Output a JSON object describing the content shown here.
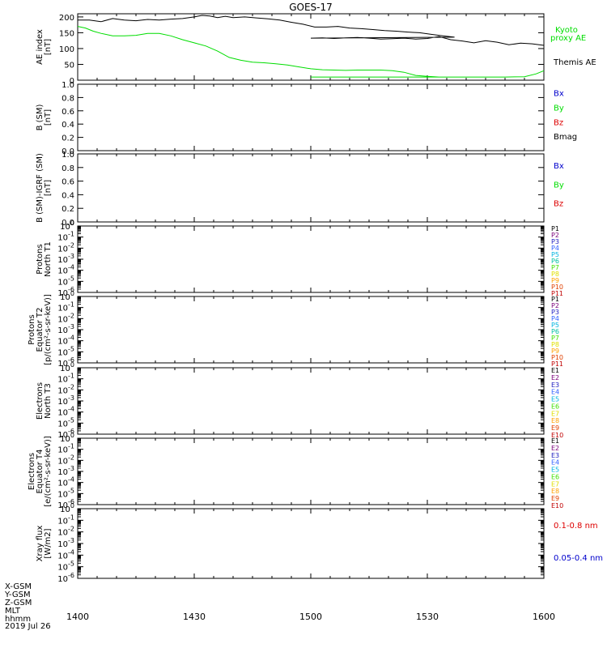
{
  "title": "GOES-17",
  "colors": {
    "axis": "#000000",
    "green": "#00dd00",
    "blue": "#0000cc",
    "red": "#dd0000"
  },
  "chart_data": [
    {
      "type": "line",
      "ylabel": [
        "AE index",
        "[nT]"
      ],
      "ylim": [
        0,
        210
      ],
      "yticks": [
        0,
        50,
        100,
        150,
        200
      ],
      "legend": [
        {
          "text": "Kyoto",
          "color": "#00dd00"
        },
        {
          "text": "proxy AE",
          "color": "#00dd00"
        },
        {
          "text": "Themis AE",
          "color": "#000000"
        }
      ],
      "series": [
        {
          "name": "Themis AE",
          "color": "#000000",
          "points": [
            [
              1400,
              190
            ],
            [
              1403,
              190
            ],
            [
              1406,
              185
            ],
            [
              1409,
              195
            ],
            [
              1412,
              190
            ],
            [
              1415,
              188
            ],
            [
              1418,
              192
            ],
            [
              1421,
              190
            ],
            [
              1424,
              193
            ],
            [
              1427,
              195
            ],
            [
              1430,
              200
            ],
            [
              1432,
              205
            ],
            [
              1434,
              203
            ],
            [
              1436,
              198
            ],
            [
              1438,
              202
            ],
            [
              1440,
              198
            ],
            [
              1443,
              200
            ],
            [
              1446,
              197
            ],
            [
              1449,
              194
            ],
            [
              1452,
              190
            ],
            [
              1455,
              183
            ],
            [
              1458,
              177
            ],
            [
              1461,
              168
            ],
            [
              1464,
              168
            ],
            [
              1467,
              170
            ],
            [
              1470,
              165
            ],
            [
              1473,
              163
            ],
            [
              1476,
              160
            ],
            [
              1479,
              157
            ],
            [
              1482,
              155
            ],
            [
              1485,
              152
            ],
            [
              1488,
              150
            ],
            [
              1491,
              145
            ],
            [
              1494,
              140
            ],
            [
              1497,
              136
            ],
            [
              1500,
              133
            ],
            [
              1503,
              134
            ],
            [
              1506,
              132
            ],
            [
              1509,
              134
            ],
            [
              1512,
              135
            ],
            [
              1515,
              133
            ],
            [
              1518,
              130
            ],
            [
              1521,
              131
            ],
            [
              1524,
              133
            ],
            [
              1527,
              130
            ],
            [
              1530,
              132
            ],
            [
              1533,
              138
            ],
            [
              1536,
              128
            ],
            [
              1539,
              124
            ],
            [
              1542,
              118
            ],
            [
              1545,
              125
            ],
            [
              1548,
              120
            ],
            [
              1551,
              112
            ],
            [
              1554,
              117
            ],
            [
              1557,
              115
            ],
            [
              1560,
              110
            ]
          ]
        },
        {
          "name": "Kyoto proxy AE",
          "color": "#00dd00",
          "points": [
            [
              1400,
              170
            ],
            [
              1402,
              165
            ],
            [
              1404,
              155
            ],
            [
              1406,
              148
            ],
            [
              1409,
              140
            ],
            [
              1412,
              140
            ],
            [
              1415,
              142
            ],
            [
              1418,
              148
            ],
            [
              1421,
              148
            ],
            [
              1424,
              140
            ],
            [
              1427,
              128
            ],
            [
              1430,
              118
            ],
            [
              1433,
              108
            ],
            [
              1436,
              92
            ],
            [
              1439,
              72
            ],
            [
              1442,
              63
            ],
            [
              1445,
              57
            ],
            [
              1448,
              55
            ],
            [
              1451,
              52
            ],
            [
              1454,
              48
            ],
            [
              1457,
              42
            ],
            [
              1460,
              36
            ],
            [
              1463,
              33
            ],
            [
              1466,
              32
            ],
            [
              1469,
              31
            ],
            [
              1472,
              32
            ],
            [
              1475,
              32
            ],
            [
              1478,
              32
            ],
            [
              1481,
              30
            ],
            [
              1484,
              25
            ],
            [
              1487,
              15
            ],
            [
              1490,
              12
            ],
            [
              1493,
              10
            ],
            [
              1500,
              10
            ],
            [
              1510,
              10
            ],
            [
              1520,
              10
            ],
            [
              1530,
              10
            ],
            [
              1540,
              10
            ],
            [
              1550,
              10
            ],
            [
              1555,
              11
            ],
            [
              1558,
              20
            ],
            [
              1560,
              30
            ]
          ]
        }
      ]
    },
    {
      "type": "line",
      "ylabel": [
        "B (SM)",
        "[nT]"
      ],
      "ylim": [
        0,
        1
      ],
      "yticks": [
        "0.0",
        "0.2",
        "0.4",
        "0.6",
        "0.8",
        "1.0"
      ],
      "legend": [
        {
          "text": "Bx",
          "color": "#0000cc"
        },
        {
          "text": "By",
          "color": "#00dd00"
        },
        {
          "text": "Bz",
          "color": "#dd0000"
        },
        {
          "text": "Bmag",
          "color": "#000000"
        }
      ],
      "series": []
    },
    {
      "type": "line",
      "ylabel": [
        "B (SM)-IGRF (SM)",
        "[nT]"
      ],
      "ylim": [
        0,
        1
      ],
      "yticks": [
        "0.0",
        "0.2",
        "0.4",
        "0.6",
        "0.8",
        "1.0"
      ],
      "legend": [
        {
          "text": "Bx",
          "color": "#0000cc"
        },
        {
          "text": "By",
          "color": "#00dd00"
        },
        {
          "text": "Bz",
          "color": "#dd0000"
        }
      ],
      "series": []
    },
    {
      "type": "line",
      "scale": "log",
      "ylabel": [
        "Protons",
        "North T1"
      ],
      "ylim": [
        1e-06,
        1
      ],
      "legend": [
        {
          "text": "P1",
          "color": "#000000"
        },
        {
          "text": "P2",
          "color": "#7a007a"
        },
        {
          "text": "P3",
          "color": "#2020c0"
        },
        {
          "text": "P4",
          "color": "#3060ff"
        },
        {
          "text": "P5",
          "color": "#00b4e0"
        },
        {
          "text": "P6",
          "color": "#00c0a0"
        },
        {
          "text": "P7",
          "color": "#40e000"
        },
        {
          "text": "P8",
          "color": "#e0e000"
        },
        {
          "text": "P9",
          "color": "#ffa000"
        },
        {
          "text": "P10",
          "color": "#e04000"
        },
        {
          "text": "P11",
          "color": "#c00000"
        }
      ],
      "series": []
    },
    {
      "type": "line",
      "scale": "log",
      "ylabel": [
        "Protons",
        "Equator T2",
        "[p/(cm²-s-sr-keV)]"
      ],
      "ylim": [
        1e-06,
        1
      ],
      "legend": [
        {
          "text": "P1",
          "color": "#000000"
        },
        {
          "text": "P2",
          "color": "#7a007a"
        },
        {
          "text": "P3",
          "color": "#2020c0"
        },
        {
          "text": "P4",
          "color": "#3060ff"
        },
        {
          "text": "P5",
          "color": "#00b4e0"
        },
        {
          "text": "P6",
          "color": "#00c0a0"
        },
        {
          "text": "P7",
          "color": "#40e000"
        },
        {
          "text": "P8",
          "color": "#e0e000"
        },
        {
          "text": "P9",
          "color": "#ffa000"
        },
        {
          "text": "P10",
          "color": "#e04000"
        },
        {
          "text": "P11",
          "color": "#c00000"
        }
      ],
      "series": []
    },
    {
      "type": "line",
      "scale": "log",
      "ylabel": [
        "Electrons",
        "North T3"
      ],
      "ylim": [
        1e-06,
        1
      ],
      "legend": [
        {
          "text": "E1",
          "color": "#000000"
        },
        {
          "text": "E2",
          "color": "#7a007a"
        },
        {
          "text": "E3",
          "color": "#2020c0"
        },
        {
          "text": "E4",
          "color": "#3060ff"
        },
        {
          "text": "E5",
          "color": "#00b4e0"
        },
        {
          "text": "E6",
          "color": "#40e000"
        },
        {
          "text": "E7",
          "color": "#e0e000"
        },
        {
          "text": "E8",
          "color": "#ffa000"
        },
        {
          "text": "E9",
          "color": "#e04000"
        },
        {
          "text": "E10",
          "color": "#c00000"
        }
      ],
      "series": []
    },
    {
      "type": "line",
      "scale": "log",
      "ylabel": [
        "Electrons",
        "Equator T4",
        "[e/(cm²-s-sr-keV)]"
      ],
      "ylim": [
        1e-06,
        1
      ],
      "legend": [
        {
          "text": "E1",
          "color": "#000000"
        },
        {
          "text": "E2",
          "color": "#7a007a"
        },
        {
          "text": "E3",
          "color": "#2020c0"
        },
        {
          "text": "E4",
          "color": "#3060ff"
        },
        {
          "text": "E5",
          "color": "#00b4e0"
        },
        {
          "text": "E6",
          "color": "#40e000"
        },
        {
          "text": "E7",
          "color": "#e0e000"
        },
        {
          "text": "E8",
          "color": "#ffa000"
        },
        {
          "text": "E9",
          "color": "#e04000"
        },
        {
          "text": "E10",
          "color": "#c00000"
        }
      ],
      "series": []
    },
    {
      "type": "line",
      "scale": "log",
      "ylabel": [
        "Xray flux",
        "[W/m2]"
      ],
      "ylim": [
        1e-06,
        1
      ],
      "legend": [
        {
          "text": "0.1-0.8 nm",
          "color": "#dd0000"
        },
        {
          "text": "0.05-0.4 nm",
          "color": "#0000cc"
        }
      ],
      "series": []
    }
  ],
  "xaxis": {
    "range": [
      1400,
      1600
    ],
    "ticks": [
      1400,
      1430,
      1500,
      1530,
      1600
    ],
    "tick_labels": [
      "1400",
      "1430",
      "1500",
      "1530",
      "1600"
    ],
    "row_labels": [
      "X-GSM",
      "Y-GSM",
      "Z-GSM",
      "MLT",
      "hhmm"
    ],
    "date": "2019 Jul 26"
  }
}
